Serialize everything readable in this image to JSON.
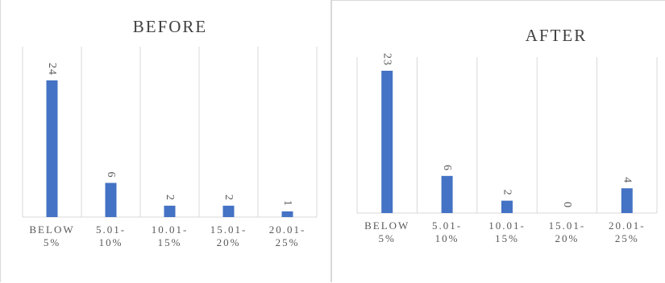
{
  "colors": {
    "bar": "#4472c4",
    "grid": "#d9d9d9",
    "text": "#595959",
    "title": "#404040"
  },
  "chart_data": [
    {
      "type": "bar",
      "title": "BEFORE",
      "categories": [
        [
          "BELOW",
          "5%"
        ],
        [
          "5.01-",
          "10%"
        ],
        [
          "10.01-",
          "15%"
        ],
        [
          "15.01-",
          "20%"
        ],
        [
          "20.01-",
          "25%"
        ]
      ],
      "values": [
        24,
        6,
        2,
        2,
        1
      ],
      "ylim": [
        0,
        24
      ],
      "grid": "vertical",
      "legend": "none"
    },
    {
      "type": "bar",
      "title": "AFTER",
      "categories": [
        [
          "BELOW",
          "5%"
        ],
        [
          "5.01-",
          "10%"
        ],
        [
          "10.01-",
          "15%"
        ],
        [
          "15.01-",
          "20%"
        ],
        [
          "20.01-",
          "25%"
        ]
      ],
      "values": [
        23,
        6,
        2,
        0,
        4
      ],
      "ylim": [
        0,
        23
      ],
      "grid": "vertical",
      "legend": "none"
    }
  ]
}
